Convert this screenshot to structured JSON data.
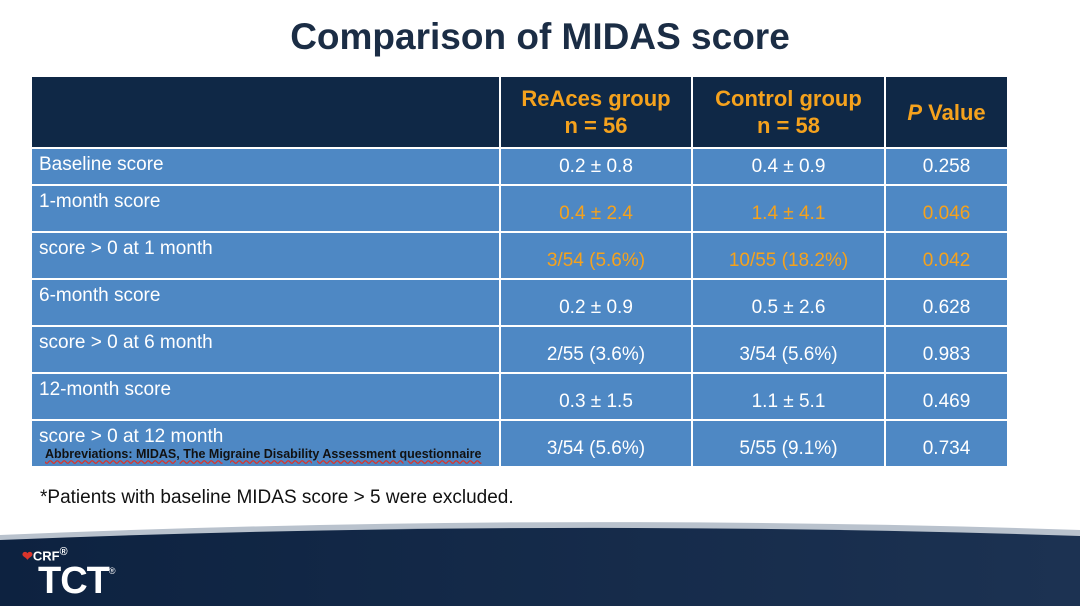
{
  "title": "Comparison of MIDAS score",
  "table": {
    "headers": [
      {
        "line1": "ReAces group",
        "line2": "n = 56"
      },
      {
        "line1": "Control group",
        "line2": "n = 58"
      },
      {
        "italic": "P",
        "rest": " Value"
      }
    ],
    "rows": [
      {
        "label": "Baseline score",
        "reaces": "0.2 ± 0.8",
        "control": "0.4 ± 0.9",
        "p": "0.258",
        "highlight": false
      },
      {
        "label": "1-month  score",
        "reaces": "0.4 ± 2.4",
        "control": "1.4 ± 4.1",
        "p": "0.046",
        "highlight": true
      },
      {
        "label": "score > 0 at 1 month",
        "reaces": "3/54 (5.6%)",
        "control": "10/55 (18.2%)",
        "p": "0.042",
        "highlight": true
      },
      {
        "label": "6-month score",
        "reaces": "0.2 ± 0.9",
        "control": "0.5 ± 2.6",
        "p": "0.628",
        "highlight": false
      },
      {
        "label": "score > 0 at 6 month",
        "reaces": "2/55 (3.6%)",
        "control": "3/54 (5.6%)",
        "p": "0.983",
        "highlight": false
      },
      {
        "label": "12-month score",
        "reaces": "0.3 ± 1.5",
        "control": "1.1 ± 5.1",
        "p": "0.469",
        "highlight": false
      },
      {
        "label": "score > 0 at 12 month",
        "reaces": "3/54 (5.6%)",
        "control": "5/55 (9.1%)",
        "p": "0.734",
        "highlight": false
      }
    ]
  },
  "abbreviations": "Abbreviations: MIDAS, The Migraine Disability Assessment questionnaire",
  "footnote": "*Patients with baseline MIDAS score > 5 were excluded.",
  "logo": {
    "crf": "CRF",
    "crf_mark": "®",
    "tct": "TCT",
    "tct_mark": "®"
  },
  "colors": {
    "header_bg": "#0f2846",
    "cell_bg": "#4e88c4",
    "highlight": "#f5a21d",
    "title": "#1b2d45"
  }
}
